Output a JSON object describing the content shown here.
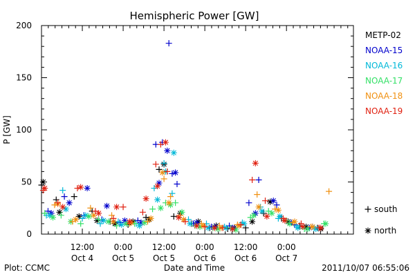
{
  "chart_data": {
    "type": "scatter",
    "title": "Hemispheric Power [GW]",
    "ylabel": "P [GW]",
    "xlabel": "Date and Time",
    "ylim": [
      0,
      200
    ],
    "yticks": [
      0,
      50,
      100,
      150,
      200
    ],
    "ytick_labels": [
      "0",
      "50",
      "100",
      "150",
      "200"
    ],
    "xlim": [
      0.0,
      3.82
    ],
    "xticks": [
      {
        "t": 0.5,
        "time": "12:00",
        "date": "Oct 4"
      },
      {
        "t": 1.0,
        "time": "0:00",
        "date": "Oct 5"
      },
      {
        "t": 1.5,
        "time": "12:00",
        "date": "Oct 5"
      },
      {
        "t": 2.0,
        "time": "0:00",
        "date": "Oct 6"
      },
      {
        "t": 2.5,
        "time": "12:00",
        "date": "Oct 6"
      },
      {
        "t": 3.0,
        "time": "0:00",
        "date": "Oct 7"
      }
    ],
    "x_units": "days since Oct 4 00:00 (2011)",
    "legend": {
      "placement": "right",
      "entries": [
        "METP-02",
        "NOAA-15",
        "NOAA-16",
        "NOAA-17",
        "NOAA-18",
        "NOAA-19"
      ],
      "markers": [
        {
          "symbol": "+",
          "label": "south"
        },
        {
          "symbol": "*",
          "label": "north"
        }
      ]
    },
    "grid": false,
    "series": [
      {
        "name": "METP-02",
        "color": "#000000",
        "south": [
          [
            0.0,
            47
          ],
          [
            0.18,
            33
          ],
          [
            0.4,
            36
          ],
          [
            0.62,
            22
          ],
          [
            0.84,
            12
          ],
          [
            1.06,
            9
          ],
          [
            1.28,
            16
          ],
          [
            1.44,
            62
          ],
          [
            1.62,
            17
          ],
          [
            1.84,
            10
          ],
          [
            2.06,
            6
          ],
          [
            2.28,
            5
          ],
          [
            2.5,
            6
          ],
          [
            2.72,
            20
          ],
          [
            2.94,
            15
          ],
          [
            3.16,
            8
          ],
          [
            3.38,
            6
          ]
        ],
        "north": [
          [
            0.02,
            50
          ],
          [
            0.22,
            21
          ],
          [
            0.46,
            17
          ],
          [
            0.68,
            13
          ],
          [
            0.9,
            10
          ],
          [
            1.12,
            12
          ],
          [
            1.32,
            14
          ],
          [
            1.5,
            67
          ],
          [
            1.7,
            20
          ],
          [
            1.92,
            12
          ],
          [
            2.14,
            8
          ],
          [
            2.36,
            6
          ],
          [
            2.58,
            12
          ],
          [
            2.8,
            31
          ],
          [
            3.02,
            12
          ],
          [
            3.24,
            7
          ],
          [
            3.42,
            5
          ]
        ]
      },
      {
        "name": "NOAA-15",
        "color": "#0000cc",
        "south": [
          [
            0.08,
            22
          ],
          [
            0.28,
            36
          ],
          [
            0.52,
            18
          ],
          [
            0.74,
            14
          ],
          [
            0.96,
            11
          ],
          [
            1.18,
            13
          ],
          [
            1.4,
            86
          ],
          [
            1.48,
            88
          ],
          [
            1.56,
            183
          ],
          [
            1.6,
            58
          ],
          [
            1.66,
            48
          ],
          [
            1.86,
            10
          ],
          [
            2.08,
            7
          ],
          [
            2.3,
            8
          ],
          [
            2.54,
            30
          ],
          [
            2.66,
            52
          ],
          [
            2.88,
            28
          ],
          [
            3.1,
            9
          ],
          [
            3.32,
            7
          ]
        ],
        "north": [
          [
            0.12,
            20
          ],
          [
            0.34,
            30
          ],
          [
            0.56,
            44
          ],
          [
            0.8,
            27
          ],
          [
            1.02,
            13
          ],
          [
            1.22,
            11
          ],
          [
            1.44,
            49
          ],
          [
            1.54,
            80
          ],
          [
            1.64,
            59
          ],
          [
            1.9,
            11
          ],
          [
            2.12,
            7
          ],
          [
            2.34,
            6
          ],
          [
            2.62,
            20
          ],
          [
            2.84,
            32
          ],
          [
            3.06,
            11
          ],
          [
            3.28,
            6
          ]
        ]
      },
      {
        "name": "NOAA-16",
        "color": "#00b8d8",
        "south": [
          [
            0.06,
            18
          ],
          [
            0.26,
            42
          ],
          [
            0.5,
            15
          ],
          [
            0.72,
            10
          ],
          [
            0.94,
            12
          ],
          [
            1.16,
            10
          ],
          [
            1.38,
            44
          ],
          [
            1.5,
            68
          ],
          [
            1.6,
            39
          ],
          [
            1.8,
            14
          ],
          [
            2.02,
            10
          ],
          [
            2.24,
            7
          ],
          [
            2.46,
            11
          ],
          [
            2.68,
            26
          ],
          [
            2.9,
            15
          ],
          [
            3.12,
            8
          ],
          [
            3.34,
            6
          ]
        ],
        "north": [
          [
            0.1,
            18
          ],
          [
            0.3,
            24
          ],
          [
            0.54,
            18
          ],
          [
            0.76,
            13
          ],
          [
            0.98,
            9
          ],
          [
            1.2,
            8
          ],
          [
            1.42,
            33
          ],
          [
            1.52,
            60
          ],
          [
            1.62,
            78
          ],
          [
            1.82,
            10
          ],
          [
            2.04,
            6
          ],
          [
            2.26,
            6
          ],
          [
            2.48,
            10
          ],
          [
            2.7,
            22
          ],
          [
            2.92,
            17
          ],
          [
            3.14,
            6
          ],
          [
            3.36,
            5
          ]
        ]
      },
      {
        "name": "NOAA-17",
        "color": "#33e066",
        "south": [
          [
            0.04,
            20
          ],
          [
            0.24,
            18
          ],
          [
            0.48,
            10
          ],
          [
            0.7,
            14
          ],
          [
            0.92,
            8
          ],
          [
            1.14,
            10
          ],
          [
            1.36,
            24
          ],
          [
            1.52,
            30
          ],
          [
            1.64,
            30
          ],
          [
            1.88,
            8
          ],
          [
            2.1,
            6
          ],
          [
            2.32,
            6
          ],
          [
            2.56,
            16
          ],
          [
            2.78,
            22
          ],
          [
            3.0,
            13
          ],
          [
            3.22,
            5
          ],
          [
            3.46,
            10
          ]
        ],
        "north": [
          [
            0.14,
            16
          ],
          [
            0.36,
            12
          ],
          [
            0.58,
            17
          ],
          [
            0.82,
            12
          ],
          [
            1.04,
            10
          ],
          [
            1.26,
            11
          ],
          [
            1.46,
            25
          ],
          [
            1.58,
            28
          ],
          [
            1.72,
            21
          ],
          [
            1.94,
            7
          ],
          [
            2.16,
            5
          ],
          [
            2.38,
            4
          ],
          [
            2.6,
            18
          ],
          [
            2.82,
            20
          ],
          [
            3.04,
            10
          ],
          [
            3.26,
            5
          ],
          [
            3.48,
            10
          ]
        ]
      },
      {
        "name": "NOAA-18",
        "color": "#f09010",
        "south": [
          [
            0.16,
            28
          ],
          [
            0.38,
            12
          ],
          [
            0.6,
            25
          ],
          [
            0.86,
            18
          ],
          [
            1.08,
            10
          ],
          [
            1.3,
            12
          ],
          [
            1.5,
            53
          ],
          [
            1.58,
            36
          ],
          [
            1.7,
            18
          ],
          [
            1.96,
            10
          ],
          [
            2.18,
            8
          ],
          [
            2.4,
            9
          ],
          [
            2.64,
            38
          ],
          [
            2.86,
            24
          ],
          [
            3.08,
            11
          ],
          [
            3.3,
            7
          ],
          [
            3.52,
            41
          ]
        ],
        "north": [
          [
            0.2,
            29
          ],
          [
            0.42,
            14
          ],
          [
            0.64,
            18
          ],
          [
            0.88,
            12
          ],
          [
            1.1,
            11
          ],
          [
            1.34,
            15
          ],
          [
            1.48,
            59
          ],
          [
            1.56,
            30
          ],
          [
            1.74,
            14
          ],
          [
            1.98,
            8
          ],
          [
            2.2,
            6
          ],
          [
            2.42,
            8
          ],
          [
            2.66,
            26
          ],
          [
            2.9,
            23
          ],
          [
            3.1,
            12
          ],
          [
            3.32,
            7
          ]
        ]
      },
      {
        "name": "NOAA-19",
        "color": "#e02010",
        "south": [
          [
            0.02,
            42
          ],
          [
            0.2,
            30
          ],
          [
            0.44,
            44
          ],
          [
            0.66,
            22
          ],
          [
            0.88,
            15
          ],
          [
            1.0,
            26
          ],
          [
            1.24,
            21
          ],
          [
            1.4,
            67
          ],
          [
            1.46,
            86
          ],
          [
            1.54,
            60
          ],
          [
            1.76,
            12
          ],
          [
            2.0,
            7
          ],
          [
            2.22,
            6
          ],
          [
            2.44,
            9
          ],
          [
            2.58,
            52
          ],
          [
            2.74,
            32
          ],
          [
            2.96,
            15
          ],
          [
            3.18,
            10
          ],
          [
            3.4,
            6
          ]
        ],
        "north": [
          [
            0.04,
            44
          ],
          [
            0.26,
            26
          ],
          [
            0.48,
            45
          ],
          [
            0.7,
            20
          ],
          [
            0.92,
            26
          ],
          [
            1.08,
            12
          ],
          [
            1.28,
            34
          ],
          [
            1.42,
            46
          ],
          [
            1.52,
            88
          ],
          [
            1.68,
            16
          ],
          [
            1.9,
            8
          ],
          [
            2.12,
            6
          ],
          [
            2.34,
            5
          ],
          [
            2.62,
            68
          ],
          [
            2.76,
            17
          ],
          [
            2.98,
            13
          ],
          [
            3.2,
            7
          ],
          [
            3.42,
            6
          ]
        ]
      }
    ]
  },
  "footer": {
    "left": "Plot: CCMC",
    "right": "2011/10/07 06:55:06"
  }
}
